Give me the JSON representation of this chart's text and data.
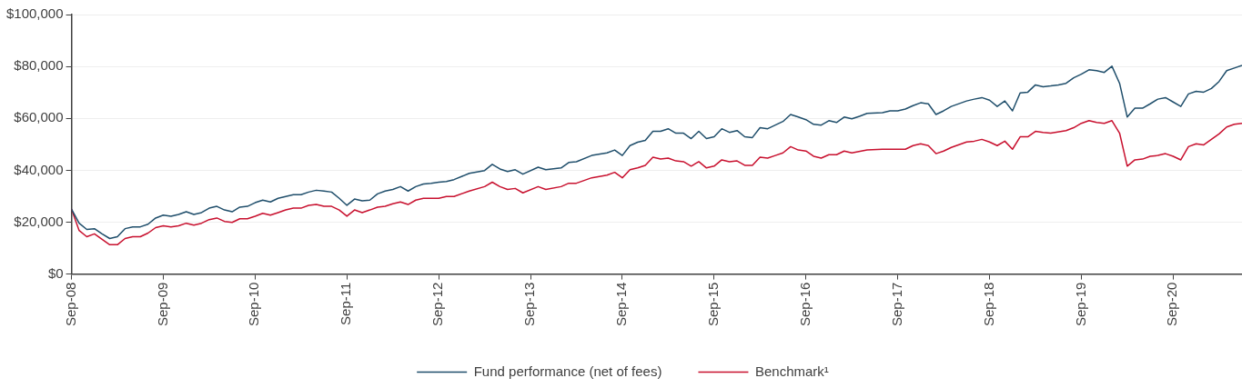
{
  "chart_data": {
    "type": "line",
    "legend": "bottom",
    "grid": "y",
    "marker": "none",
    "line_style": "solid",
    "xlim": [
      "2008-09",
      "2021-06"
    ],
    "xticks": [
      {
        "value": "2008-09",
        "label": "Sep-08"
      },
      {
        "value": "2009-09",
        "label": "Sep-09"
      },
      {
        "value": "2010-09",
        "label": "Sep-10"
      },
      {
        "value": "2011-09",
        "label": "Sep-11"
      },
      {
        "value": "2012-09",
        "label": "Sep-12"
      },
      {
        "value": "2013-09",
        "label": "Sep-13"
      },
      {
        "value": "2014-09",
        "label": "Sep-14"
      },
      {
        "value": "2015-09",
        "label": "Sep-15"
      },
      {
        "value": "2016-09",
        "label": "Sep-16"
      },
      {
        "value": "2017-09",
        "label": "Sep-17"
      },
      {
        "value": "2018-09",
        "label": "Sep-18"
      },
      {
        "value": "2019-09",
        "label": "Sep-19"
      },
      {
        "value": "2020-09",
        "label": "Sep-20"
      }
    ],
    "ylim": [
      0,
      100000
    ],
    "yticks": [
      {
        "value": 0,
        "label": "$0"
      },
      {
        "value": 20000,
        "label": "$20,000"
      },
      {
        "value": 40000,
        "label": "$40,000"
      },
      {
        "value": 60000,
        "label": "$60,000"
      },
      {
        "value": 80000,
        "label": "$80,000"
      },
      {
        "value": 100000,
        "label": "$100,000"
      }
    ],
    "series": [
      {
        "name": "Fund performance (net of fees)",
        "color": "#1f4e6b",
        "x": [
          "2008-09",
          "2008-10",
          "2008-11",
          "2008-12",
          "2009-01",
          "2009-02",
          "2009-03",
          "2009-04",
          "2009-05",
          "2009-06",
          "2009-07",
          "2009-08",
          "2009-09",
          "2009-10",
          "2009-11",
          "2009-12",
          "2010-01",
          "2010-02",
          "2010-03",
          "2010-04",
          "2010-05",
          "2010-06",
          "2010-07",
          "2010-08",
          "2010-09",
          "2010-10",
          "2010-11",
          "2010-12",
          "2011-01",
          "2011-02",
          "2011-03",
          "2011-04",
          "2011-05",
          "2011-06",
          "2011-07",
          "2011-08",
          "2011-09",
          "2011-10",
          "2011-11",
          "2011-12",
          "2012-01",
          "2012-02",
          "2012-03",
          "2012-04",
          "2012-05",
          "2012-06",
          "2012-07",
          "2012-08",
          "2012-09",
          "2012-10",
          "2012-11",
          "2013-01",
          "2013-03",
          "2013-04",
          "2013-05",
          "2013-06",
          "2013-07",
          "2013-08",
          "2013-10",
          "2013-11",
          "2014-01",
          "2014-02",
          "2014-03",
          "2014-05",
          "2014-07",
          "2014-08",
          "2014-09",
          "2014-10",
          "2014-11",
          "2014-12",
          "2015-01",
          "2015-02",
          "2015-03",
          "2015-04",
          "2015-05",
          "2015-06",
          "2015-07",
          "2015-08",
          "2015-09",
          "2015-10",
          "2015-11",
          "2015-12",
          "2016-01",
          "2016-02",
          "2016-03",
          "2016-04",
          "2016-05",
          "2016-06",
          "2016-07",
          "2016-08",
          "2016-09",
          "2016-10",
          "2016-11",
          "2016-12",
          "2017-01",
          "2017-02",
          "2017-03",
          "2017-04",
          "2017-05",
          "2017-07",
          "2017-08",
          "2017-09",
          "2017-10",
          "2017-11",
          "2017-12",
          "2018-01",
          "2018-02",
          "2018-03",
          "2018-04",
          "2018-06",
          "2018-07",
          "2018-08",
          "2018-09",
          "2018-10",
          "2018-11",
          "2018-12",
          "2019-01",
          "2019-02",
          "2019-03",
          "2019-04",
          "2019-05",
          "2019-06",
          "2019-07",
          "2019-08",
          "2019-09",
          "2019-10",
          "2019-11",
          "2019-12",
          "2020-01",
          "2020-02",
          "2020-03",
          "2020-04",
          "2020-05",
          "2020-06",
          "2020-07",
          "2020-08",
          "2020-09",
          "2020-10",
          "2020-11",
          "2020-12",
          "2021-01",
          "2021-02",
          "2021-03",
          "2021-04",
          "2021-05",
          "2021-06"
        ],
        "values": [
          25000,
          19600,
          17200,
          17500,
          15500,
          13700,
          14400,
          17500,
          18200,
          18200,
          19200,
          21600,
          22700,
          22300,
          23000,
          24000,
          23000,
          23700,
          25400,
          26100,
          24700,
          24000,
          25800,
          26100,
          27500,
          28500,
          27800,
          29200,
          29900,
          30600,
          30600,
          31600,
          32300,
          32000,
          31600,
          29200,
          26500,
          28900,
          28200,
          28500,
          30900,
          32000,
          32600,
          33700,
          32000,
          33700,
          34700,
          35000,
          35400,
          35700,
          36400,
          38800,
          39900,
          42300,
          40500,
          39500,
          40200,
          38500,
          41200,
          40200,
          40900,
          43000,
          43300,
          45700,
          46700,
          47800,
          45700,
          49500,
          50800,
          51500,
          55000,
          55000,
          56000,
          54300,
          54300,
          52200,
          55000,
          52200,
          52900,
          56000,
          54600,
          55300,
          52900,
          52600,
          56400,
          56000,
          57400,
          58800,
          61500,
          60500,
          59500,
          57700,
          57400,
          59100,
          58400,
          60500,
          59800,
          60800,
          61900,
          62200,
          62900,
          62900,
          63600,
          64900,
          66000,
          65600,
          61500,
          62900,
          64600,
          66700,
          67400,
          68000,
          67000,
          64600,
          66700,
          62900,
          69800,
          70100,
          72900,
          72200,
          72500,
          72900,
          73500,
          75600,
          77000,
          78700,
          78400,
          77700,
          80100,
          73500,
          60500,
          63900,
          63900,
          65600,
          67400,
          68000,
          66300,
          64600,
          69400,
          70400,
          70100,
          71500,
          74200,
          78400,
          79400,
          80400
        ]
      },
      {
        "name": "Benchmark¹",
        "color": "#c8102e",
        "x": [
          "2008-09",
          "2008-10",
          "2008-11",
          "2008-12",
          "2009-01",
          "2009-02",
          "2009-03",
          "2009-04",
          "2009-05",
          "2009-06",
          "2009-07",
          "2009-08",
          "2009-09",
          "2009-10",
          "2009-11",
          "2009-12",
          "2010-01",
          "2010-02",
          "2010-03",
          "2010-04",
          "2010-05",
          "2010-06",
          "2010-07",
          "2010-08",
          "2010-09",
          "2010-10",
          "2010-11",
          "2010-12",
          "2011-01",
          "2011-02",
          "2011-03",
          "2011-04",
          "2011-05",
          "2011-06",
          "2011-07",
          "2011-08",
          "2011-09",
          "2011-10",
          "2011-11",
          "2011-12",
          "2012-01",
          "2012-02",
          "2012-03",
          "2012-04",
          "2012-05",
          "2012-06",
          "2012-07",
          "2012-08",
          "2012-09",
          "2012-10",
          "2012-11",
          "2013-01",
          "2013-03",
          "2013-04",
          "2013-05",
          "2013-06",
          "2013-07",
          "2013-08",
          "2013-10",
          "2013-11",
          "2014-01",
          "2014-02",
          "2014-03",
          "2014-05",
          "2014-07",
          "2014-08",
          "2014-09",
          "2014-10",
          "2014-11",
          "2014-12",
          "2015-01",
          "2015-02",
          "2015-03",
          "2015-04",
          "2015-05",
          "2015-06",
          "2015-07",
          "2015-08",
          "2015-09",
          "2015-10",
          "2015-11",
          "2015-12",
          "2016-01",
          "2016-02",
          "2016-03",
          "2016-04",
          "2016-05",
          "2016-06",
          "2016-07",
          "2016-08",
          "2016-09",
          "2016-10",
          "2016-11",
          "2016-12",
          "2017-01",
          "2017-02",
          "2017-03",
          "2017-05",
          "2017-07",
          "2017-10",
          "2017-11",
          "2017-12",
          "2018-01",
          "2018-02",
          "2018-03",
          "2018-04",
          "2018-06",
          "2018-07",
          "2018-08",
          "2018-09",
          "2018-10",
          "2018-11",
          "2018-12",
          "2019-01",
          "2019-02",
          "2019-03",
          "2019-04",
          "2019-05",
          "2019-07",
          "2019-08",
          "2019-09",
          "2019-10",
          "2019-11",
          "2019-12",
          "2020-01",
          "2020-02",
          "2020-03",
          "2020-04",
          "2020-05",
          "2020-06",
          "2020-07",
          "2020-08",
          "2020-09",
          "2020-10",
          "2020-11",
          "2020-12",
          "2021-01",
          "2021-02",
          "2021-03",
          "2021-04",
          "2021-05",
          "2021-06"
        ],
        "values": [
          25000,
          16800,
          14400,
          15500,
          13400,
          11300,
          11300,
          13700,
          14400,
          14400,
          15800,
          17900,
          18600,
          18200,
          18600,
          19600,
          18900,
          19600,
          21000,
          21600,
          20300,
          19900,
          21300,
          21300,
          22300,
          23400,
          22700,
          23700,
          24700,
          25400,
          25400,
          26500,
          26800,
          26100,
          26100,
          24700,
          22300,
          24700,
          23700,
          24700,
          25800,
          26100,
          27100,
          27800,
          26800,
          28500,
          29200,
          29200,
          29200,
          29900,
          29900,
          32000,
          33700,
          35400,
          33700,
          32600,
          33000,
          31300,
          33700,
          32600,
          33700,
          35000,
          35000,
          37100,
          38100,
          39200,
          37100,
          40200,
          40900,
          41900,
          45000,
          44300,
          44700,
          43600,
          43300,
          41600,
          43300,
          40900,
          41600,
          44000,
          43300,
          43600,
          41900,
          41900,
          45000,
          44700,
          45700,
          46700,
          49100,
          47800,
          47400,
          45400,
          44700,
          46000,
          46000,
          47400,
          46700,
          47800,
          48100,
          48100,
          49500,
          50200,
          49500,
          46400,
          47400,
          48800,
          50900,
          51200,
          51900,
          50900,
          49500,
          51200,
          48100,
          52900,
          52900,
          55000,
          54600,
          54300,
          55300,
          56400,
          58100,
          59100,
          58400,
          58100,
          59100,
          54300,
          41600,
          44000,
          44300,
          45400,
          45700,
          46400,
          45400,
          44000,
          49100,
          50200,
          49800,
          51900,
          54000,
          56700,
          57700,
          58100
        ]
      }
    ]
  }
}
